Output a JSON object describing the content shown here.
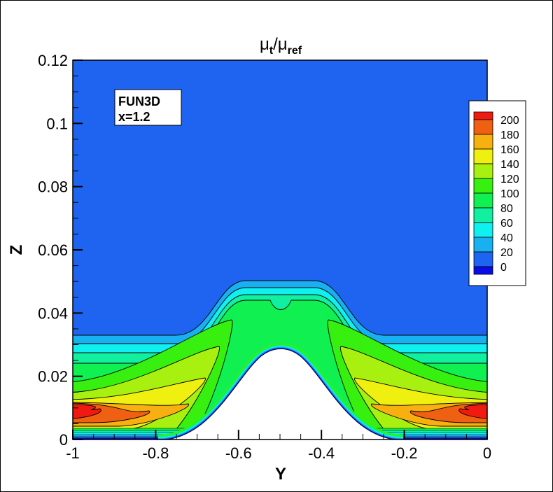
{
  "chart_data": {
    "type": "contour",
    "title": {
      "main": "μ",
      "sub1": "t",
      "slash": "/μ",
      "sub2": "ref"
    },
    "xlabel": "Y",
    "ylabel": "Z",
    "xlim": [
      -1,
      0
    ],
    "ylim": [
      0,
      0.12
    ],
    "xticks": [
      "-1",
      "-0.8",
      "-0.6",
      "-0.4",
      "-0.2",
      "0"
    ],
    "xtick_values": [
      -1,
      -0.8,
      -0.6,
      -0.4,
      -0.2,
      0
    ],
    "yticks": [
      "0",
      "0.02",
      "0.04",
      "0.06",
      "0.08",
      "0.1",
      "0.12"
    ],
    "ytick_values": [
      0,
      0.02,
      0.04,
      0.06,
      0.08,
      0.1,
      0.12
    ],
    "grid": false,
    "annotation": {
      "line1": "FUN3D",
      "line2": "x=1.2"
    },
    "legend": {
      "placement": "right",
      "levels": [
        "200",
        "180",
        "160",
        "140",
        "120",
        "100",
        "80",
        "60",
        "40",
        "20",
        "0"
      ],
      "colors": [
        "#f01a10",
        "#f06012",
        "#f8b010",
        "#f0f010",
        "#a8f010",
        "#38f010",
        "#10f050",
        "#10f0a0",
        "#10f0f0",
        "#18b0f0",
        "#1e64f0",
        "#0a0ae6"
      ]
    },
    "background_color": "#1e64f0",
    "contour_peak_locations_Y": [
      -1,
      0
    ],
    "notes_visible": false
  }
}
